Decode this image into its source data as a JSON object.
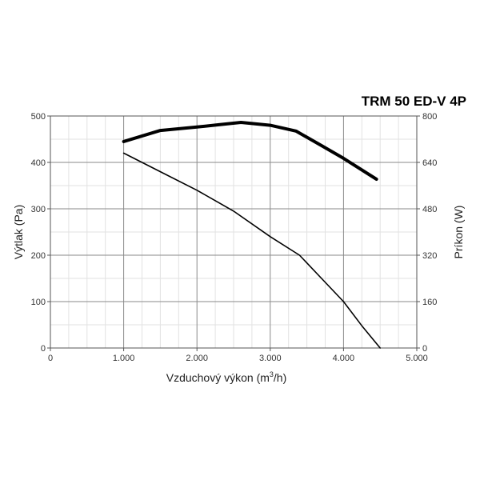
{
  "chart_data": {
    "type": "line",
    "title": "TRM 50 ED-V 4P",
    "xlabel": "Vzduchový výkon (m",
    "xlabel_sup": "3",
    "xlabel_suffix": "/h)",
    "ylabel_left": "Výtlak (Pa)",
    "ylabel_right": "Príkon (W)",
    "xlim": [
      0,
      5000
    ],
    "ylim_left": [
      0,
      500
    ],
    "ylim_right": [
      0,
      800
    ],
    "x_ticks": [
      0,
      1000,
      2000,
      3000,
      4000,
      5000
    ],
    "x_tick_labels": [
      "0",
      "1.000",
      "2.000",
      "3.000",
      "4.000",
      "5.000"
    ],
    "y_left_ticks": [
      0,
      100,
      200,
      300,
      400,
      500
    ],
    "y_left_tick_labels": [
      "0",
      "100",
      "200",
      "300",
      "400",
      "500"
    ],
    "y_right_ticks": [
      0,
      160,
      320,
      480,
      640,
      800
    ],
    "y_right_tick_labels": [
      "0",
      "160",
      "320",
      "480",
      "640",
      "800"
    ],
    "grid": true,
    "series": [
      {
        "axis": "right",
        "color": "#000000",
        "style": "thick",
        "x": [
          1000,
          1500,
          2000,
          2300,
          2600,
          3000,
          3350,
          3700,
          4000,
          4450
        ],
        "y": [
          712,
          750,
          762,
          770,
          778,
          768,
          748,
          698,
          654,
          582
        ]
      },
      {
        "axis": "left",
        "color": "#000000",
        "style": "thin",
        "x": [
          1000,
          1500,
          2000,
          2500,
          3000,
          3400,
          3700,
          4000,
          4250,
          4500
        ],
        "y": [
          420,
          380,
          340,
          295,
          240,
          200,
          150,
          100,
          48,
          0
        ]
      }
    ]
  }
}
